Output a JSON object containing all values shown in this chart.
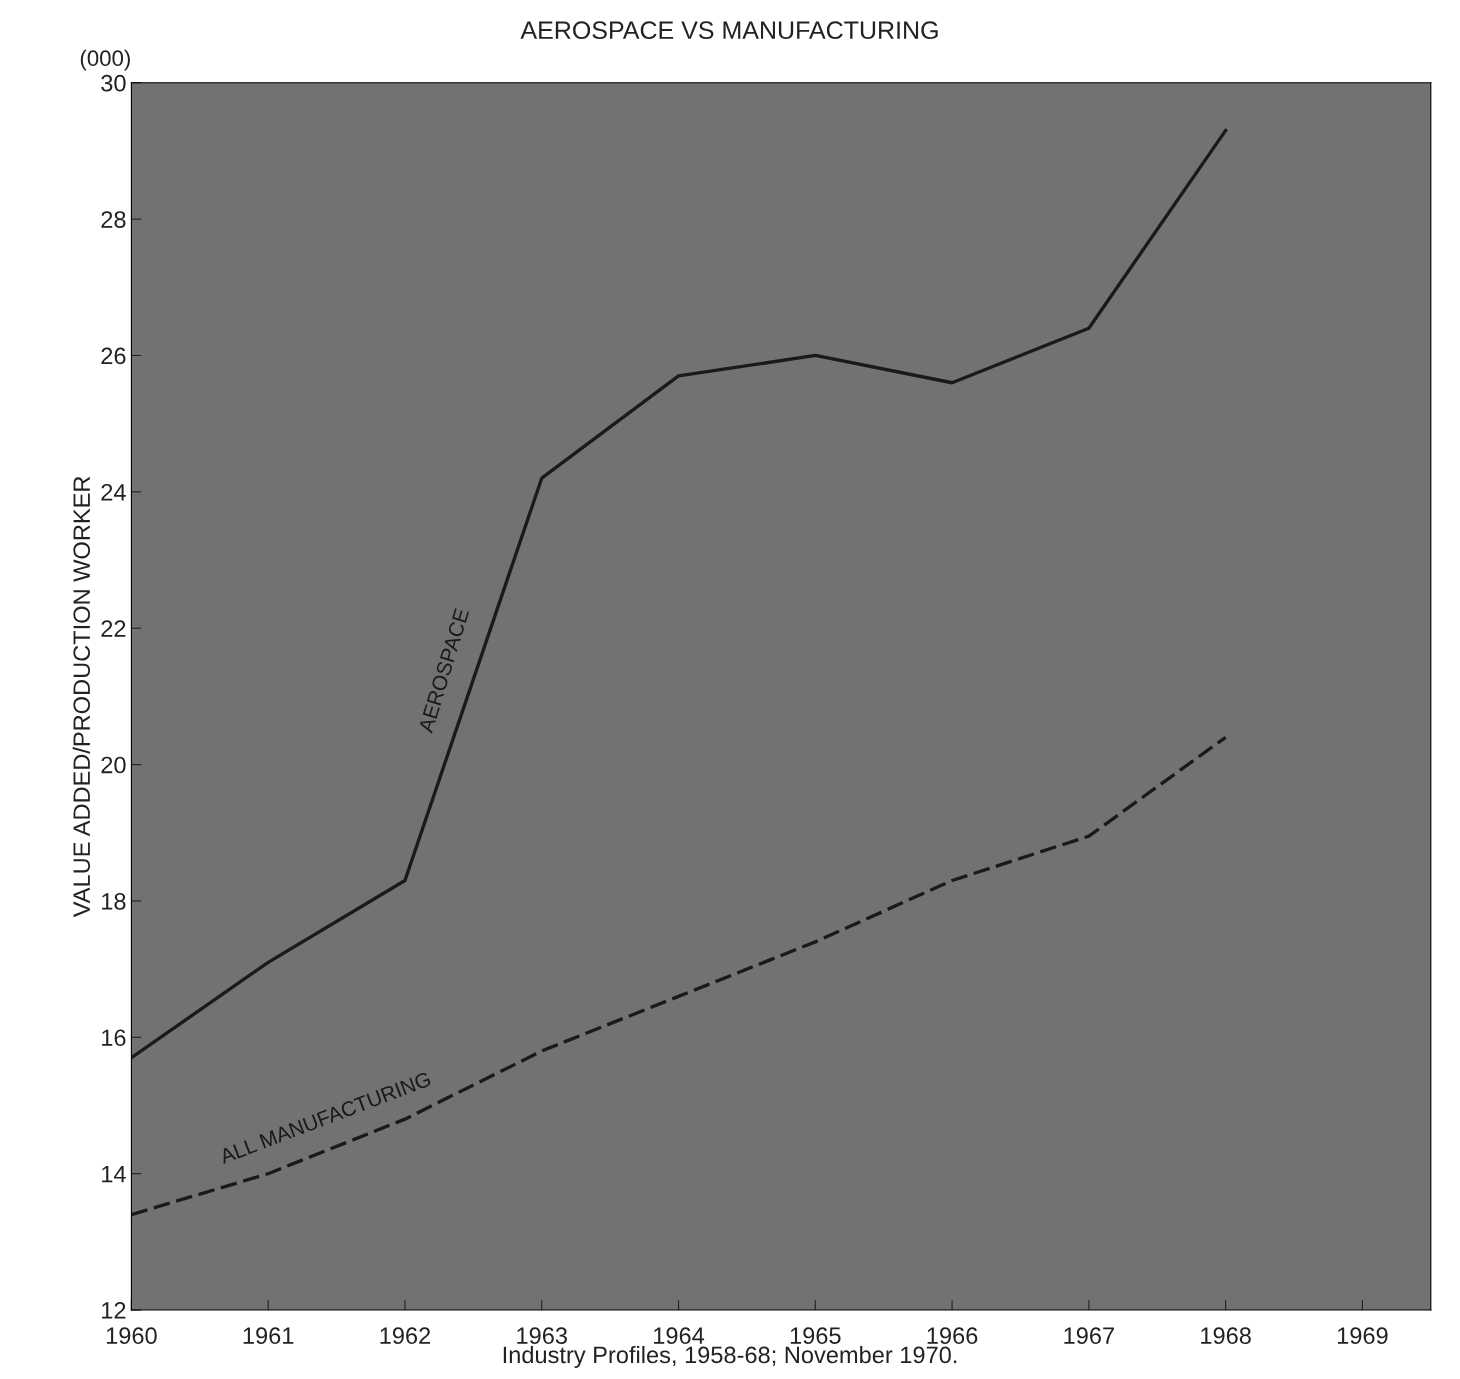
{
  "chart_data": {
    "type": "line",
    "title": "AEROSPACE VS MANUFACTURING",
    "ylabel": "VALUE ADDED/PRODUCTION WORKER",
    "x": [
      1960,
      1961,
      1962,
      1963,
      1964,
      1965,
      1966,
      1967,
      1968
    ],
    "series": [
      {
        "name": "AEROSPACE",
        "color": "#1a1a1a",
        "line_style": "solid",
        "values": [
          15.7,
          17.1,
          18.3,
          24.2,
          25.7,
          26.0,
          25.6,
          26.4,
          29.3
        ]
      },
      {
        "name": "ALL MANUFACTURING",
        "color": "#1a1a1a",
        "line_style": "dashed",
        "values": [
          13.4,
          14.0,
          14.8,
          15.8,
          16.6,
          17.4,
          18.3,
          18.95,
          20.4
        ]
      }
    ],
    "xlim": [
      1960,
      1969.5
    ],
    "ylim": [
      12,
      30
    ],
    "xticks": [
      1960,
      1961,
      1962,
      1963,
      1964,
      1965,
      1966,
      1967,
      1968,
      1969
    ],
    "yticks": [
      12,
      14,
      16,
      18,
      20,
      22,
      24,
      26,
      28,
      30
    ],
    "grid": false,
    "legend": false,
    "marker": "none",
    "annotations": [
      "(000)",
      "Industry Profiles, 1958-68; November 1970."
    ]
  }
}
